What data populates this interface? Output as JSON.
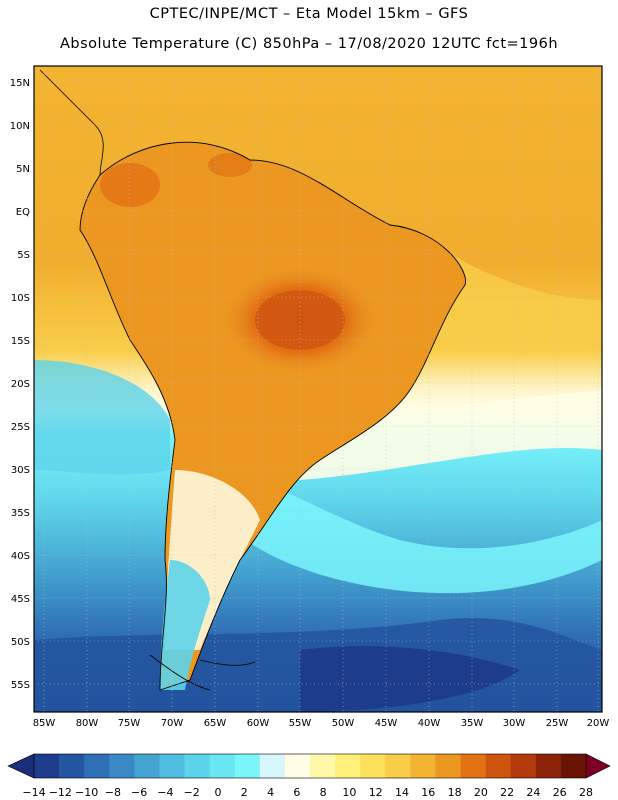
{
  "header": {
    "line1": "CPTEC/INPE/MCT –  Eta Model 15km – GFS",
    "line2": "Absolute Temperature (C) 850hPa – 17/08/2020 12UTC fct=196h"
  },
  "map": {
    "lat_labels": [
      "15N",
      "10N",
      "5N",
      "EQ",
      "5S",
      "10S",
      "15S",
      "20S",
      "25S",
      "30S",
      "35S",
      "40S",
      "45S",
      "50S",
      "55S"
    ],
    "lon_labels": [
      "85W",
      "80W",
      "75W",
      "70W",
      "65W",
      "60W",
      "55W",
      "50W",
      "45W",
      "40W",
      "35W",
      "30W",
      "25W",
      "20W"
    ]
  },
  "colorbar": {
    "colors": [
      "#1d3d8c",
      "#2455a0",
      "#2f6fb5",
      "#3a89c6",
      "#44a3d1",
      "#50bde0",
      "#5dd3ea",
      "#6ae6f2",
      "#7af6fb",
      "#d6f6fb",
      "#fffde6",
      "#fff8a8",
      "#fff07a",
      "#fde15c",
      "#f9cd48",
      "#f3b431",
      "#ec9720",
      "#e27214",
      "#cf5410",
      "#b23a0d",
      "#8c2309",
      "#6a1406"
    ],
    "labels": [
      "-14",
      "-12",
      "-10",
      "-8",
      "-6",
      "-4",
      "-2",
      "0",
      "2",
      "4",
      "6",
      "8",
      "10",
      "12",
      "14",
      "16",
      "18",
      "20",
      "22",
      "24",
      "26",
      "28"
    ],
    "left_arrow": "#1a2e7a",
    "right_arrow": "#7a0025"
  }
}
